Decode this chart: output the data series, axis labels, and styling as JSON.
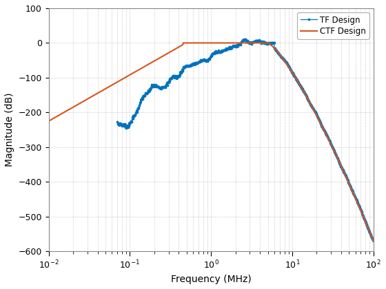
{
  "xlabel": "Frequency (MHz)",
  "ylabel": "Magnitude (dB)",
  "xlim": [
    0.01,
    100
  ],
  "ylim": [
    -600,
    100
  ],
  "yticks": [
    100,
    0,
    -100,
    -200,
    -300,
    -400,
    -500,
    -600
  ],
  "tf_color": "#0072BD",
  "ctf_color": "#D95319",
  "tf_label": "TF Design",
  "ctf_label": "CTF Design",
  "background_color": "#ffffff",
  "grid_color": "#cccccc"
}
